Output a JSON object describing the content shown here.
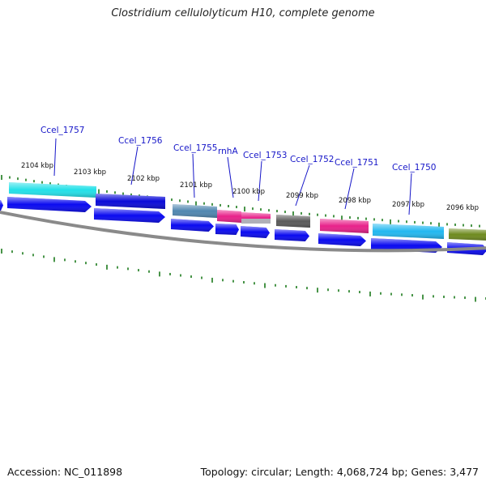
{
  "title": "Clostridium cellulolyticum H10, complete genome",
  "footer": {
    "accession": "Accession: NC_011898",
    "summary": "Topology: circular; Length: 4,068,724 bp; Genes: 3,477"
  },
  "colors": {
    "background": "#ffffff",
    "cds_arrow": "#0a0af0",
    "tick": "#1a7a1a",
    "gene_label": "#1515c8",
    "backbone": "#8a8a8a"
  },
  "position_labels": [
    "2104 kbp",
    "2103 kbp",
    "2102 kbp",
    "2101 kbp",
    "2100 kbp",
    "2099 kbp",
    "2098 kbp",
    "2097 kbp",
    "2096 kbp"
  ],
  "gene_labels": [
    "Ccel_1757",
    "Ccel_1756",
    "Ccel_1755",
    "rnhA",
    "Ccel_1753",
    "Ccel_1752",
    "Ccel_1751",
    "Ccel_1750"
  ],
  "gene_feature_colors": [
    "#22e0e8",
    "#0a0ad8",
    "#4f86b0",
    "#e8228a",
    "#e8228a",
    "#5a5a5a",
    "#e8228a",
    "#22b8f0",
    "#6e8a1e"
  ]
}
